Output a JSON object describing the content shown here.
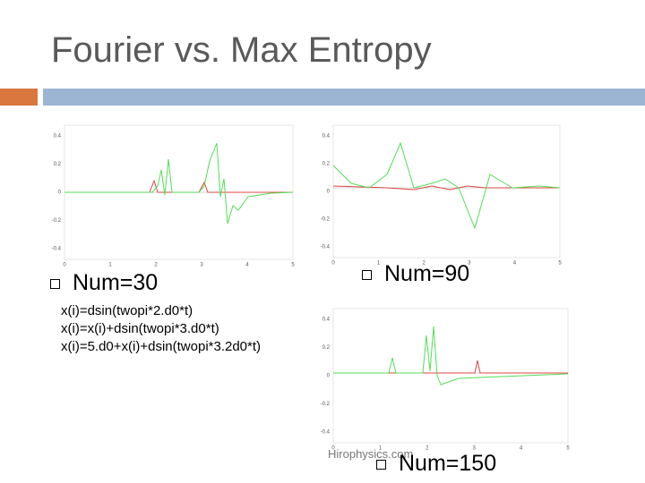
{
  "title": "Fourier vs. Max Entropy",
  "bullets": [
    "Num=30",
    "Num=90",
    "Num=150"
  ],
  "code": [
    "x(i)=dsin(twopi*2.d0*t)",
    "x(i)=x(i)+dsin(twopi*3.d0*t)",
    "x(i)=5.d0+x(i)+dsin(twopi*3.2d0*t)"
  ],
  "footer": "Hirophysics.com",
  "plots": [
    {
      "yticks": [
        "0.4",
        "0.2",
        "0",
        "-0.2",
        "-0.4"
      ],
      "xticks": [
        "0",
        "1",
        "2",
        "3",
        "4",
        "5"
      ]
    },
    {
      "yticks": [
        "0.4",
        "0.2",
        "0",
        "-0.2",
        "-0.4"
      ],
      "xticks": [
        "0",
        "1",
        "2",
        "3",
        "4",
        "5"
      ]
    },
    {
      "yticks": [
        "0.4",
        "0.2",
        "0",
        "-0.2",
        "-0.4"
      ],
      "xticks": [
        "0",
        "1",
        "2",
        "3",
        "4",
        "5"
      ]
    }
  ]
}
